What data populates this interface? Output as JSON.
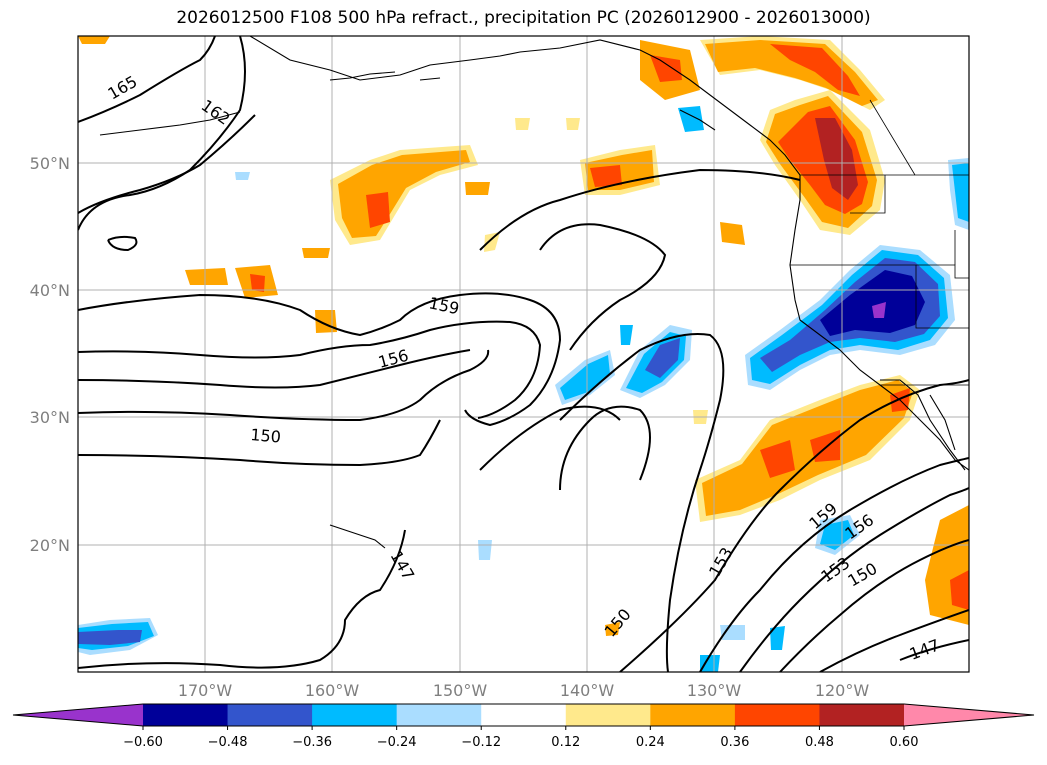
{
  "title": "2026012500 F108 500 hPa refract., precipitation PC (2026012900 - 2026013000)",
  "map": {
    "lat_ticks": [
      "50°N",
      "40°N",
      "30°N",
      "20°N"
    ],
    "lon_ticks": [
      "170°W",
      "160°W",
      "150°W",
      "140°W",
      "130°W",
      "120°W"
    ],
    "contour_labels": [
      "165",
      "162",
      "159",
      "156",
      "150",
      "147",
      "153",
      "159",
      "156",
      "153",
      "150",
      "150",
      "147"
    ]
  },
  "colorbar": {
    "ticks": [
      "−0.60",
      "−0.48",
      "−0.36",
      "−0.24",
      "−0.12",
      "0.12",
      "0.24",
      "0.36",
      "0.48",
      "0.60"
    ],
    "colors": [
      "#9933cc",
      "#000099",
      "#3355cc",
      "#00bbff",
      "#aaddff",
      "#ffffff",
      "#ffe98c",
      "#ffa500",
      "#ff4500",
      "#b22222",
      "#ff88aa"
    ]
  }
}
